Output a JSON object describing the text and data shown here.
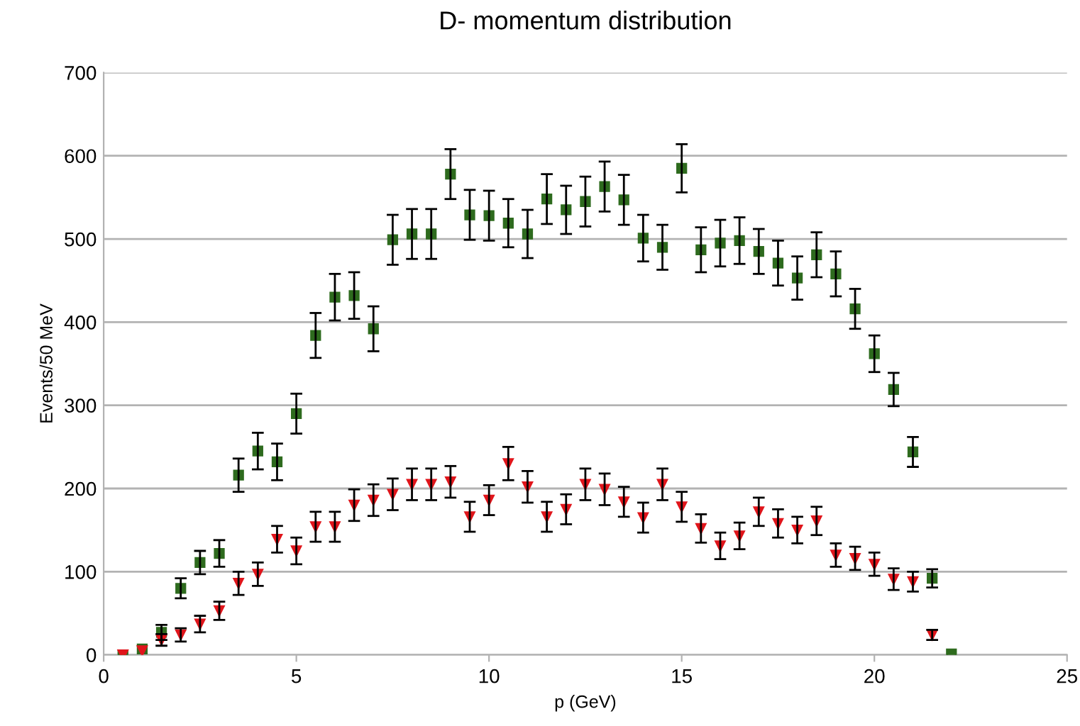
{
  "chart_data": {
    "type": "scatter",
    "title": "D- momentum distribution",
    "xlabel": "p (GeV)",
    "ylabel": "Events/50 MeV",
    "xlim": [
      0,
      25
    ],
    "ylim": [
      0,
      700
    ],
    "xticks": [
      0,
      5,
      10,
      15,
      20,
      25
    ],
    "yticks": [
      0,
      100,
      200,
      300,
      400,
      500,
      600,
      700
    ],
    "grid": "y",
    "line_style": "none",
    "series": [
      {
        "color": "#2e6b1e",
        "marker": "square",
        "x": [
          0.5,
          1,
          1.5,
          2,
          2.5,
          3,
          3.5,
          4,
          4.5,
          5,
          5.5,
          6,
          6.5,
          7,
          7.5,
          8,
          8.5,
          9,
          9.5,
          10,
          10.5,
          11,
          11.5,
          12,
          12.5,
          13,
          13.5,
          14,
          14.5,
          15,
          15.5,
          16,
          16.5,
          17,
          17.5,
          18,
          18.5,
          19,
          19.5,
          20,
          20.5,
          21,
          21.5,
          22
        ],
        "values": [
          0,
          7,
          27,
          80,
          111,
          122,
          216,
          245,
          232,
          290,
          384,
          430,
          432,
          392,
          499,
          506,
          506,
          578,
          529,
          528,
          519,
          506,
          548,
          535,
          545,
          563,
          547,
          501,
          490,
          585,
          487,
          495,
          498,
          485,
          471,
          453,
          481,
          458,
          416,
          362,
          319,
          244,
          92,
          1
        ],
        "errors": [
          null,
          null,
          9,
          12,
          14,
          16,
          20,
          22,
          22,
          24,
          27,
          28,
          28,
          27,
          30,
          30,
          30,
          30,
          30,
          30,
          29,
          29,
          30,
          29,
          30,
          30,
          30,
          28,
          27,
          29,
          27,
          28,
          28,
          27,
          27,
          26,
          27,
          27,
          24,
          22,
          20,
          18,
          11,
          null
        ]
      },
      {
        "color": "#e0151b",
        "marker": "triangle",
        "x": [
          0.5,
          1,
          1.5,
          2,
          2.5,
          3,
          3.5,
          4,
          4.5,
          5,
          5.5,
          6,
          6.5,
          7,
          7.5,
          8,
          8.5,
          9,
          9.5,
          10,
          10.5,
          11,
          11.5,
          12,
          12.5,
          13,
          13.5,
          14,
          14.5,
          15,
          15.5,
          16,
          16.5,
          17,
          17.5,
          18,
          18.5,
          19,
          19.5,
          20,
          20.5,
          21,
          21.5
        ],
        "values": [
          0,
          5,
          18,
          24,
          37,
          53,
          86,
          97,
          139,
          125,
          154,
          154,
          180,
          186,
          193,
          205,
          205,
          208,
          166,
          186,
          230,
          202,
          166,
          175,
          205,
          199,
          184,
          165,
          205,
          178,
          152,
          131,
          143,
          172,
          158,
          150,
          161,
          120,
          116,
          109,
          91,
          88,
          24
        ],
        "errors": [
          null,
          null,
          7,
          8,
          10,
          11,
          14,
          14,
          16,
          16,
          18,
          18,
          19,
          19,
          19,
          19,
          19,
          19,
          18,
          18,
          20,
          19,
          18,
          18,
          19,
          19,
          18,
          18,
          19,
          18,
          17,
          16,
          16,
          17,
          17,
          16,
          17,
          14,
          14,
          14,
          13,
          12,
          6
        ]
      }
    ]
  }
}
